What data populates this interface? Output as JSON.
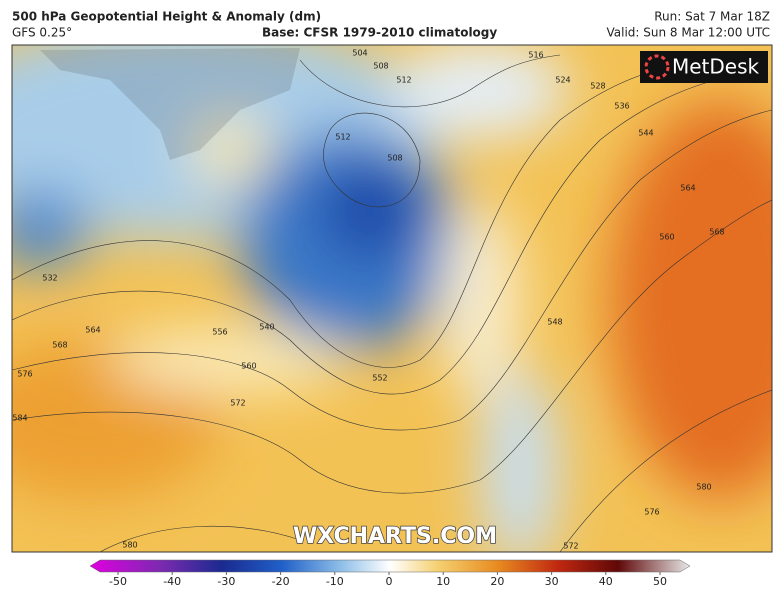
{
  "header": {
    "title": "500 hPa Geopotential Height & Anomaly (dm)",
    "model": "GFS 0.25°",
    "base": "Base: CFSR 1979-2010 climatology",
    "run": "Run: Sat 7 Mar 18Z",
    "valid": "Valid: Sun 8 Mar 12:00 UTC"
  },
  "logo": "MetDesk",
  "watermark": "WXCHARTS.COM",
  "contour_labels": [
    "504",
    "508",
    "512",
    "516",
    "524",
    "528",
    "536",
    "544",
    "564",
    "560",
    "568",
    "512",
    "508",
    "532",
    "564",
    "568",
    "576",
    "584",
    "556",
    "540",
    "560",
    "572",
    "552",
    "548",
    "580",
    "576",
    "580",
    "572"
  ],
  "colorbar": {
    "lim": [
      -50,
      50
    ],
    "ticks": [
      -50,
      -40,
      -30,
      -20,
      -10,
      0,
      10,
      20,
      30,
      40,
      50
    ]
  }
}
